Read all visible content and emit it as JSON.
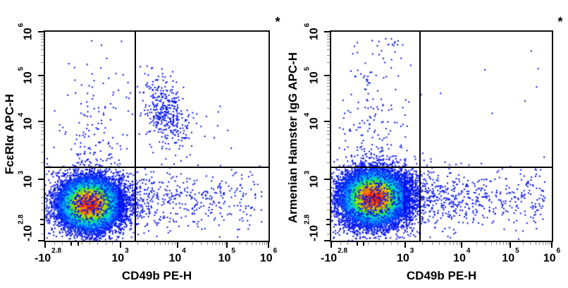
{
  "figure": {
    "background": "#ffffff",
    "frame_color": "#101010",
    "dot_color": "#0010f0",
    "gate_color": "#000000",
    "density_colormap": [
      "#0000ee",
      "#0040ff",
      "#00a0ff",
      "#00ddd0",
      "#22dd44",
      "#a0e000",
      "#ffd000",
      "#ff8800",
      "#ff4400",
      "#dd1408"
    ]
  },
  "chart_data": [
    {
      "type": "scatter",
      "subtype": "flow-cytometry-density-plot",
      "xlabel": "CD49b PE-H",
      "ylabel": "FcεRIα APC-H",
      "annotation": "*",
      "x_axis": {
        "scale": "biexponential",
        "ticks": [
          {
            "base": "-10",
            "exp": "2.8",
            "frac": 0.0,
            "shift": 4
          },
          {
            "base": "10",
            "exp": "3",
            "frac": 0.336
          },
          {
            "base": "10",
            "exp": "4",
            "frac": 0.592
          },
          {
            "base": "10",
            "exp": "5",
            "frac": 0.813
          },
          {
            "base": "10",
            "exp": "6",
            "frac": 1.0
          }
        ],
        "minor_linear": [
          0.04,
          0.075,
          0.165,
          0.2,
          0.235,
          0.27,
          0.3
        ],
        "minor_bold": [
          0.115,
          0.145
        ]
      },
      "y_axis": {
        "scale": "biexponential",
        "ticks": [
          {
            "base": "-10",
            "exp": "2.8",
            "frac": 0.0,
            "shift": -18
          },
          {
            "base": "10",
            "exp": "3",
            "frac": 0.293
          },
          {
            "base": "10",
            "exp": "4",
            "frac": 0.57
          },
          {
            "base": "10",
            "exp": "5",
            "frac": 0.79
          },
          {
            "base": "10",
            "exp": "6",
            "frac": 1.0
          }
        ],
        "minor_linear": [
          0.035,
          0.15,
          0.18,
          0.21,
          0.245
        ],
        "minor_bold": [
          0.08,
          0.105
        ]
      },
      "quadrant_gate": {
        "x_frac": 0.405,
        "y_frac": 0.35,
        "x_value_approx": "1.9e3",
        "y_value_approx": "1.6e3"
      },
      "populations": [
        {
          "name": "negative-main",
          "kind": "gaussian-density",
          "cx": 0.199,
          "cy": 0.175,
          "sx": 0.066,
          "sy": 0.06,
          "n": 13000
        },
        {
          "name": "negative-halo",
          "kind": "gaussian-blue",
          "cx": 0.199,
          "cy": 0.175,
          "sx": 0.115,
          "sy": 0.105,
          "n": 700
        },
        {
          "name": "double-positive-cd49b-fceri",
          "kind": "gaussian-blue",
          "cx": 0.545,
          "cy": 0.61,
          "sx": 0.055,
          "sy": 0.09,
          "rho": -0.35,
          "n": 380
        },
        {
          "name": "upper-left-scatter",
          "kind": "gaussian-blue",
          "cx": 0.21,
          "cy": 0.46,
          "sx": 0.075,
          "sy": 0.16,
          "n": 140
        },
        {
          "name": "upper-left-rare",
          "kind": "uniform",
          "x0": 0.08,
          "x1": 0.38,
          "y0": 0.62,
          "y1": 0.97,
          "n": 14
        },
        {
          "name": "cd49b-positive-tail",
          "kind": "tail",
          "x0": 0.33,
          "x1": 0.97,
          "decay": 2.4,
          "cy": 0.19,
          "sy": 0.068,
          "n": 550
        },
        {
          "name": "lower-right-sparse",
          "kind": "uniform",
          "x0": 0.36,
          "x1": 0.92,
          "y0": 0.04,
          "y1": 0.33,
          "n": 60
        },
        {
          "name": "upper-right-sparse",
          "kind": "uniform",
          "x0": 0.42,
          "x1": 0.85,
          "y0": 0.4,
          "y1": 0.75,
          "n": 20
        }
      ]
    },
    {
      "type": "scatter",
      "subtype": "flow-cytometry-density-plot",
      "xlabel": "CD49b PE-H",
      "ylabel": "Armenian Hamster IgG APC-H",
      "annotation": "*",
      "x_axis": {
        "scale": "biexponential",
        "ticks": [
          {
            "base": "-10",
            "exp": "2.8",
            "frac": 0.0,
            "shift": 4
          },
          {
            "base": "10",
            "exp": "3",
            "frac": 0.336
          },
          {
            "base": "10",
            "exp": "4",
            "frac": 0.592
          },
          {
            "base": "10",
            "exp": "5",
            "frac": 0.813
          },
          {
            "base": "10",
            "exp": "6",
            "frac": 1.0
          }
        ],
        "minor_linear": [
          0.04,
          0.075,
          0.165,
          0.2,
          0.235,
          0.27,
          0.3
        ],
        "minor_bold": [
          0.115,
          0.145
        ]
      },
      "y_axis": {
        "scale": "biexponential",
        "ticks": [
          {
            "base": "-10",
            "exp": "2.8",
            "frac": 0.0,
            "shift": -18
          },
          {
            "base": "10",
            "exp": "3",
            "frac": 0.293
          },
          {
            "base": "10",
            "exp": "4",
            "frac": 0.57
          },
          {
            "base": "10",
            "exp": "5",
            "frac": 0.79
          },
          {
            "base": "10",
            "exp": "6",
            "frac": 1.0
          }
        ],
        "minor_linear": [
          0.035,
          0.15,
          0.18,
          0.21,
          0.245
        ],
        "minor_bold": [
          0.08,
          0.105
        ]
      },
      "quadrant_gate": {
        "x_frac": 0.401,
        "y_frac": 0.35,
        "x_value_approx": "1.9e3",
        "y_value_approx": "1.6e3"
      },
      "populations": [
        {
          "name": "negative-main",
          "kind": "gaussian-density",
          "cx": 0.193,
          "cy": 0.205,
          "sx": 0.07,
          "sy": 0.062,
          "n": 14000
        },
        {
          "name": "negative-halo",
          "kind": "gaussian-blue",
          "cx": 0.193,
          "cy": 0.205,
          "sx": 0.12,
          "sy": 0.11,
          "n": 800
        },
        {
          "name": "upper-left-scatter",
          "kind": "gaussian-blue",
          "cx": 0.2,
          "cy": 0.55,
          "sx": 0.075,
          "sy": 0.2,
          "n": 170
        },
        {
          "name": "top-row-scatter",
          "kind": "gaussian-blue",
          "cx": 0.24,
          "cy": 0.945,
          "sx": 0.075,
          "sy": 0.012,
          "n": 16
        },
        {
          "name": "cd49b-positive-tail",
          "kind": "tail",
          "x0": 0.33,
          "x1": 0.97,
          "decay": 2.3,
          "cy": 0.205,
          "sy": 0.066,
          "n": 700
        },
        {
          "name": "lower-right-sparse",
          "kind": "uniform",
          "x0": 0.36,
          "x1": 0.95,
          "y0": 0.04,
          "y1": 0.33,
          "n": 70
        },
        {
          "name": "upper-right-rare",
          "kind": "uniform",
          "x0": 0.45,
          "x1": 0.97,
          "y0": 0.45,
          "y1": 0.95,
          "n": 7
        }
      ]
    }
  ]
}
